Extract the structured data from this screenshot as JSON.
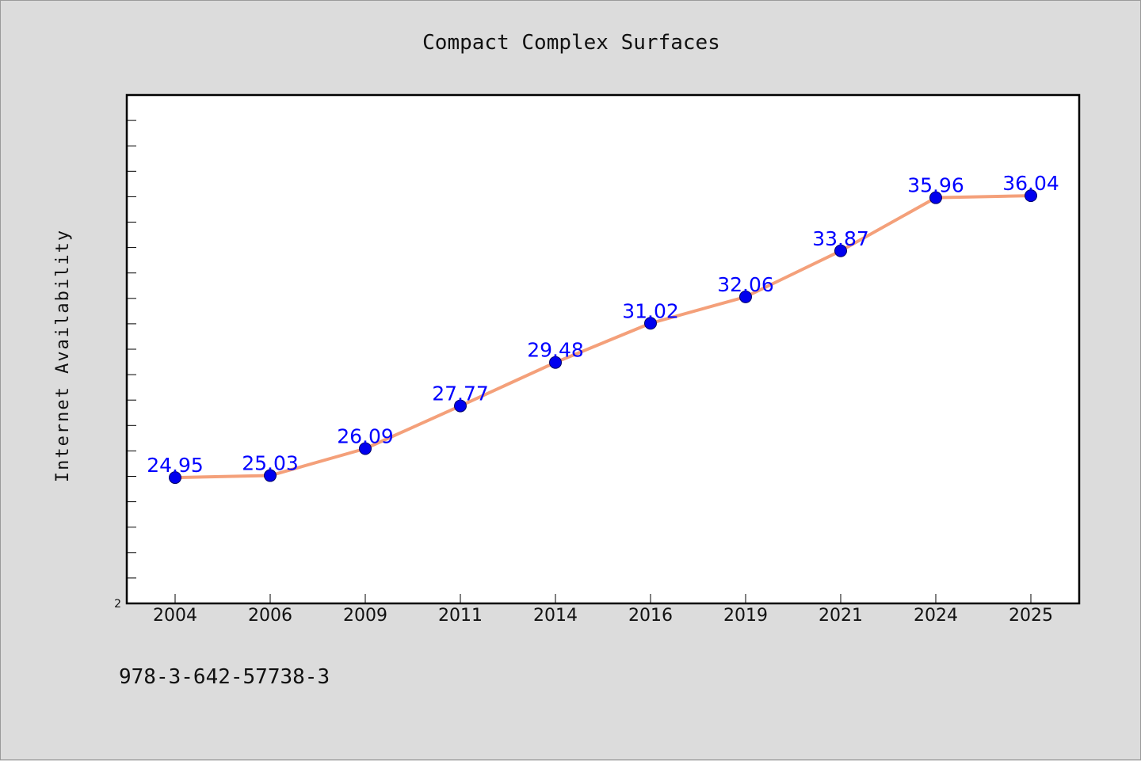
{
  "chart_data": {
    "type": "line",
    "title": "Compact Complex Surfaces",
    "xlabel": "",
    "ylabel": "Internet Availability",
    "categories": [
      "2004",
      "2006",
      "2009",
      "2011",
      "2014",
      "2016",
      "2019",
      "2021",
      "2024",
      "2025"
    ],
    "series": [
      {
        "values": [
          24.95,
          25.03,
          26.09,
          27.77,
          29.48,
          31.02,
          32.06,
          33.87,
          35.96,
          36.04
        ],
        "labels": [
          "24.95",
          "25.03",
          "26.09",
          "27.77",
          "29.48",
          "31.02",
          "32.06",
          "33.87",
          "35.96",
          "36.04"
        ]
      }
    ],
    "ylim": [
      20,
      40
    ],
    "y_tick_labels": [
      "2"
    ],
    "grid": false,
    "colors": {
      "line": "#f4a07a",
      "marker": "#0000ee",
      "data_label": "#0000ff",
      "background": "#dcdcdc",
      "plot_background": "#ffffff"
    }
  },
  "footnote": "978-3-642-57738-3"
}
